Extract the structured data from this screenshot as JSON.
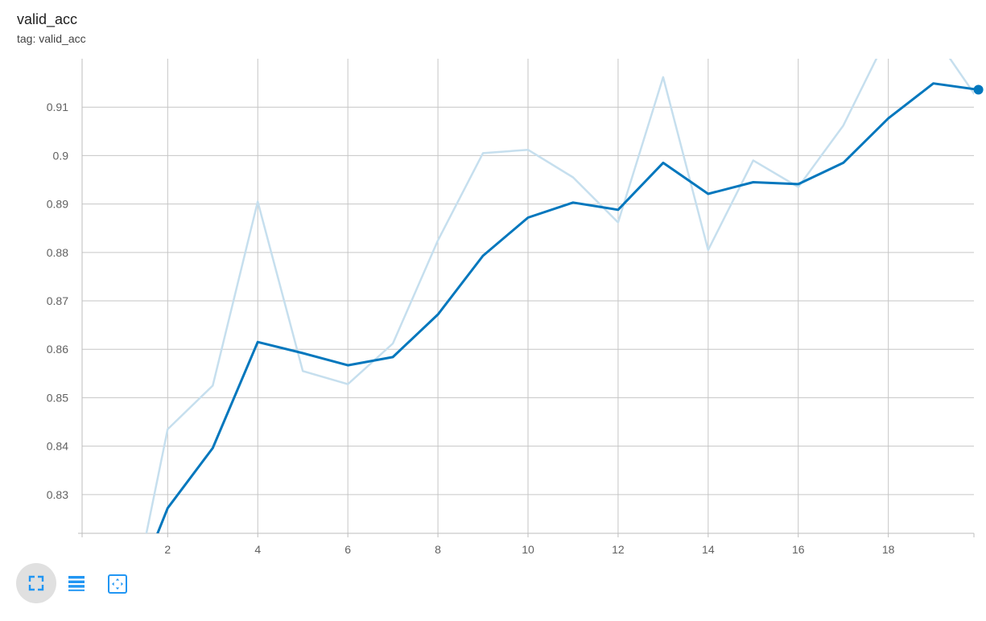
{
  "header": {
    "title": "valid_acc",
    "subtitle": "tag: valid_acc"
  },
  "toolbar": {
    "buttons": [
      {
        "icon": "fullscreen-icon",
        "active": true
      },
      {
        "icon": "list-icon",
        "active": false
      },
      {
        "icon": "fit-domain-icon",
        "active": false
      }
    ]
  },
  "colors": {
    "smoothed": "#0277bd",
    "raw": "#c6dfee",
    "icon": "#2196f3"
  },
  "chart_data": {
    "type": "line",
    "title": "valid_acc",
    "subtitle": "tag: valid_acc",
    "xlabel": "",
    "ylabel": "",
    "xlim": [
      0.1,
      19.9
    ],
    "ylim": [
      0.822,
      0.92
    ],
    "x_ticks": [
      2,
      4,
      6,
      8,
      10,
      12,
      14,
      16,
      18
    ],
    "y_ticks": [
      0.83,
      0.84,
      0.85,
      0.86,
      0.87,
      0.88,
      0.89,
      0.9,
      0.91
    ],
    "y_tick_labels": [
      "0.83",
      "0.84",
      "0.85",
      "0.86",
      "0.87",
      "0.88",
      "0.89",
      "0.9",
      "0.91"
    ],
    "grid": true,
    "legend": "none",
    "series": [
      {
        "role": "raw",
        "x": [
          1,
          2,
          3,
          4,
          5,
          6,
          7,
          8,
          9,
          10,
          11,
          12,
          13,
          14,
          15,
          16,
          17,
          18,
          19,
          20
        ],
        "y": [
          0.798,
          0.8435,
          0.8525,
          0.8905,
          0.8555,
          0.8528,
          0.8612,
          0.8825,
          0.9005,
          0.9012,
          0.8955,
          0.8862,
          0.9162,
          0.8805,
          0.899,
          0.8935,
          0.9062,
          0.925,
          0.925,
          0.9115
        ]
      },
      {
        "role": "smoothed",
        "x": [
          1,
          2,
          3,
          4,
          5,
          6,
          7,
          8,
          9,
          10,
          11,
          12,
          13,
          14,
          15,
          16,
          17,
          18,
          19,
          20
        ],
        "y": [
          0.804,
          0.8272,
          0.8396,
          0.8615,
          0.8592,
          0.8567,
          0.8584,
          0.8672,
          0.8793,
          0.8872,
          0.8903,
          0.8888,
          0.8985,
          0.8921,
          0.8945,
          0.8941,
          0.8985,
          0.9077,
          0.9149,
          0.9136
        ]
      }
    ]
  }
}
